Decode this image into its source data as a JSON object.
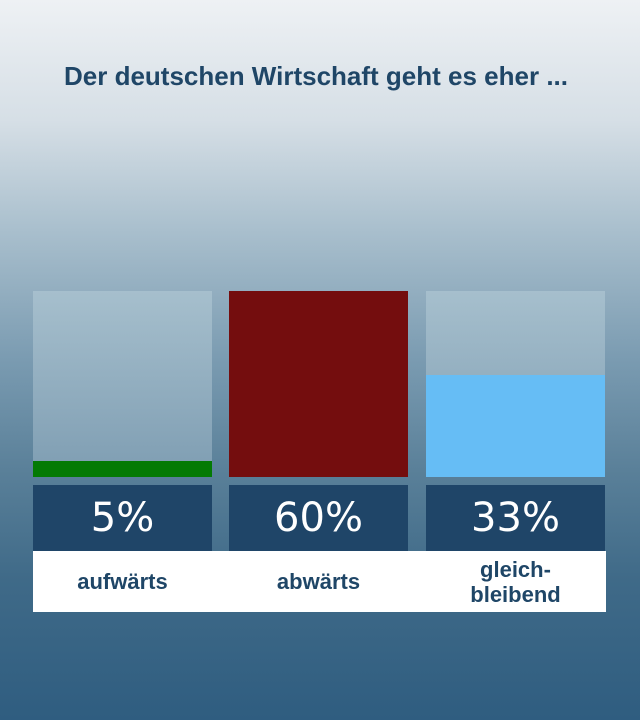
{
  "header": {
    "title": "Der deutschen Wirtschaft geht es eher ..."
  },
  "chart_data": {
    "type": "bar",
    "title": "Der deutschen Wirtschaft geht es eher ...",
    "categories": [
      "aufwärts",
      "abwärts",
      "gleich-\nbleibend"
    ],
    "values": [
      5,
      60,
      33
    ],
    "value_labels": [
      "5%",
      "60%",
      "33%"
    ],
    "colors": [
      "#047a04",
      "#740d0e",
      "#66bdf5"
    ],
    "unit": "%",
    "ylim": [
      0,
      60
    ],
    "grid": false,
    "legend": "none"
  }
}
